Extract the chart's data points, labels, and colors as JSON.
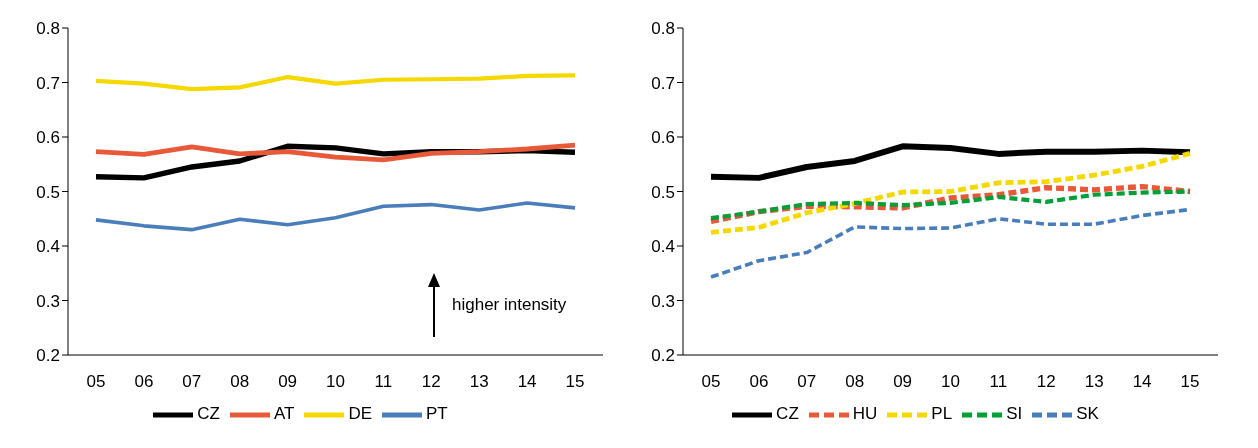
{
  "chart_data": [
    {
      "type": "line",
      "categories": [
        "05",
        "06",
        "07",
        "08",
        "09",
        "10",
        "11",
        "12",
        "13",
        "14",
        "15"
      ],
      "ylim": [
        0.2,
        0.8
      ],
      "yticks": [
        0.2,
        0.3,
        0.4,
        0.5,
        0.6,
        0.7,
        0.8
      ],
      "legend": "bottom",
      "marker": "none",
      "annotations": [
        "higher intensity"
      ],
      "series": [
        {
          "name": "CZ",
          "color": "#000000",
          "line_style": "solid",
          "values": [
            0.527,
            0.525,
            0.545,
            0.556,
            0.583,
            0.58,
            0.569,
            0.573,
            0.573,
            0.575,
            0.572
          ]
        },
        {
          "name": "AT",
          "color": "#e8593a",
          "line_style": "solid",
          "values": [
            0.573,
            0.568,
            0.582,
            0.569,
            0.573,
            0.563,
            0.558,
            0.57,
            0.573,
            0.578,
            0.585
          ]
        },
        {
          "name": "DE",
          "color": "#f5d800",
          "line_style": "solid",
          "values": [
            0.703,
            0.698,
            0.688,
            0.691,
            0.71,
            0.698,
            0.705,
            0.706,
            0.707,
            0.712,
            0.713
          ]
        },
        {
          "name": "PT",
          "color": "#4a7ebb",
          "line_style": "solid",
          "values": [
            0.448,
            0.437,
            0.43,
            0.449,
            0.439,
            0.452,
            0.473,
            0.476,
            0.466,
            0.479,
            0.47
          ]
        }
      ]
    },
    {
      "type": "line",
      "categories": [
        "05",
        "06",
        "07",
        "08",
        "09",
        "10",
        "11",
        "12",
        "13",
        "14",
        "15"
      ],
      "ylim": [
        0.2,
        0.8
      ],
      "yticks": [
        0.2,
        0.3,
        0.4,
        0.5,
        0.6,
        0.7,
        0.8
      ],
      "legend": "bottom",
      "marker": "none",
      "series": [
        {
          "name": "CZ",
          "color": "#000000",
          "line_style": "solid",
          "values": [
            0.527,
            0.525,
            0.545,
            0.556,
            0.583,
            0.58,
            0.569,
            0.573,
            0.573,
            0.575,
            0.572
          ]
        },
        {
          "name": "HU",
          "color": "#e8593a",
          "line_style": "dashed",
          "values": [
            0.445,
            0.463,
            0.473,
            0.472,
            0.47,
            0.488,
            0.494,
            0.507,
            0.503,
            0.509,
            0.5
          ]
        },
        {
          "name": "PL",
          "color": "#f5d800",
          "line_style": "dashed",
          "values": [
            0.425,
            0.434,
            0.461,
            0.478,
            0.499,
            0.5,
            0.516,
            0.518,
            0.53,
            0.546,
            0.57
          ]
        },
        {
          "name": "SI",
          "color": "#00a038",
          "line_style": "dashed",
          "values": [
            0.451,
            0.463,
            0.477,
            0.479,
            0.475,
            0.479,
            0.49,
            0.481,
            0.494,
            0.498,
            0.5
          ]
        },
        {
          "name": "SK",
          "color": "#4a7ebb",
          "line_style": "dashed",
          "values": [
            0.343,
            0.373,
            0.388,
            0.435,
            0.432,
            0.433,
            0.45,
            0.44,
            0.44,
            0.456,
            0.467
          ]
        }
      ]
    }
  ]
}
